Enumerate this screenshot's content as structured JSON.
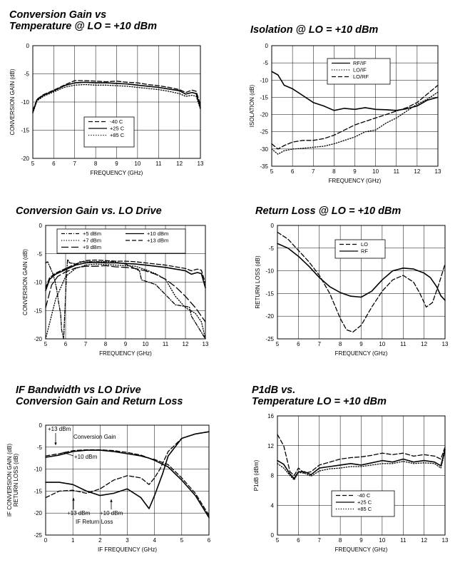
{
  "chart_data": [
    {
      "type": "line",
      "title": [
        "Conversion Gain vs",
        "Temperature @ LO = +10 dBm"
      ],
      "xlabel": "FREQUENCY (GHz)",
      "ylabel": [
        "CONVERSION GAIN (dB)"
      ],
      "xlim": [
        5,
        13
      ],
      "ylim": [
        -20,
        0
      ],
      "xticks": [
        5,
        6,
        7,
        8,
        9,
        10,
        11,
        12,
        13
      ],
      "yticks": [
        0,
        -5,
        -10,
        -15,
        -20
      ],
      "legend": {
        "position": "lower-center"
      },
      "series": [
        {
          "name": "-40 C",
          "style": "dash",
          "x": [
            5,
            5.2,
            5.5,
            6,
            6.5,
            7,
            7.5,
            8,
            8.5,
            9,
            9.5,
            10,
            10.5,
            11,
            11.5,
            12,
            12.3,
            12.6,
            12.8,
            13
          ],
          "y": [
            -11.5,
            -9.5,
            -8.7,
            -7.9,
            -7.0,
            -6.2,
            -6.2,
            -6.3,
            -6.4,
            -6.3,
            -6.5,
            -6.6,
            -6.9,
            -7.1,
            -7.4,
            -7.8,
            -8.3,
            -7.9,
            -8.1,
            -10.5
          ]
        },
        {
          "name": "+25 C",
          "style": "solid",
          "x": [
            5,
            5.2,
            5.5,
            6,
            6.5,
            7,
            7.5,
            8,
            8.5,
            9,
            9.5,
            10,
            10.5,
            11,
            11.5,
            12,
            12.3,
            12.6,
            12.8,
            13
          ],
          "y": [
            -11.8,
            -9.6,
            -8.8,
            -8.0,
            -7.1,
            -6.6,
            -6.5,
            -6.6,
            -6.6,
            -6.7,
            -6.8,
            -7.0,
            -7.2,
            -7.4,
            -7.7,
            -8.0,
            -8.6,
            -8.3,
            -8.5,
            -11.0
          ]
        },
        {
          "name": "+85 C",
          "style": "dot",
          "x": [
            5,
            5.2,
            5.5,
            6,
            6.5,
            7,
            7.5,
            8,
            8.5,
            9,
            9.5,
            10,
            10.5,
            11,
            11.5,
            12,
            12.3,
            12.6,
            12.8,
            13
          ],
          "y": [
            -12.0,
            -9.8,
            -9.0,
            -8.2,
            -7.4,
            -7.0,
            -6.9,
            -7.0,
            -7.0,
            -7.1,
            -7.2,
            -7.4,
            -7.6,
            -7.8,
            -8.1,
            -8.5,
            -9.0,
            -8.8,
            -9.0,
            -11.3
          ]
        }
      ]
    },
    {
      "type": "line",
      "title": [
        "Isolation @ LO = +10 dBm"
      ],
      "xlabel": "FREQUENCY (GHz)",
      "ylabel": [
        "ISOLATION (dB)"
      ],
      "xlim": [
        5,
        13
      ],
      "ylim": [
        -35,
        0
      ],
      "xticks": [
        5,
        6,
        7,
        8,
        9,
        10,
        11,
        12,
        13
      ],
      "yticks": [
        0,
        -5,
        -10,
        -15,
        -20,
        -25,
        -30,
        -35
      ],
      "legend": {
        "position": "top-center"
      },
      "series": [
        {
          "name": "RF/IF",
          "style": "solid",
          "x": [
            5,
            5.3,
            5.6,
            6,
            6.5,
            7,
            7.5,
            8,
            8.5,
            9,
            9.5,
            10,
            10.5,
            11,
            11.5,
            12,
            12.5,
            13
          ],
          "y": [
            -7.5,
            -8.5,
            -11.5,
            -12.5,
            -14.5,
            -16.5,
            -17.5,
            -18.8,
            -18.2,
            -18.5,
            -18.0,
            -18.5,
            -18.6,
            -18.8,
            -18.3,
            -17.5,
            -15.8,
            -15.0
          ]
        },
        {
          "name": "LO/IF",
          "style": "dot",
          "x": [
            5,
            5.3,
            5.6,
            6,
            6.5,
            7,
            7.5,
            8,
            8.5,
            9,
            9.5,
            10,
            10.5,
            11,
            11.5,
            12,
            12.5,
            13
          ],
          "y": [
            -30.0,
            -31.5,
            -30.5,
            -30.0,
            -29.8,
            -29.5,
            -29.2,
            -28.5,
            -27.5,
            -26.5,
            -25.0,
            -24.5,
            -22.5,
            -21.0,
            -19.0,
            -17.0,
            -15.5,
            -13.5
          ]
        },
        {
          "name": "LO/RF",
          "style": "dash",
          "x": [
            5,
            5.3,
            5.6,
            6,
            6.5,
            7,
            7.5,
            8,
            8.5,
            9,
            9.5,
            10,
            10.5,
            11,
            11.5,
            12,
            12.5,
            13
          ],
          "y": [
            -28.5,
            -30.0,
            -29.0,
            -28.0,
            -27.5,
            -27.5,
            -27.0,
            -26.0,
            -24.5,
            -23.0,
            -22.0,
            -21.0,
            -20.0,
            -19.0,
            -18.0,
            -16.5,
            -14.0,
            -11.5
          ]
        }
      ]
    },
    {
      "type": "line",
      "title": [
        "Conversion Gain vs. LO Drive"
      ],
      "xlabel": "FREQUENCY (GHz)",
      "ylabel": [
        "CONVERSION GAIN (dB)"
      ],
      "xlim": [
        5,
        13
      ],
      "ylim": [
        -20,
        0
      ],
      "xticks": [
        5,
        6,
        7,
        8,
        9,
        10,
        11,
        12,
        13
      ],
      "yticks": [
        0,
        -5,
        -10,
        -15,
        -20
      ],
      "legend": {
        "position": "top",
        "columns": 2
      },
      "series": [
        {
          "name": "+5 dBm",
          "style": "dashdot",
          "x": [
            5.0,
            5.1,
            5.25,
            5.3,
            5.35,
            5.45,
            5.5,
            5.55,
            5.6,
            5.65,
            5.75,
            5.8,
            5.9,
            6.05,
            6.1,
            6.2,
            6.6,
            6.7,
            6.85,
            8.4,
            9.0,
            9.7,
            9.8,
            10.5,
            11.5,
            12.2,
            12.3,
            13.0
          ],
          "y": [
            -6.6,
            -6.4,
            -7.6,
            -8.0,
            -8.4,
            -9.6,
            -10.4,
            -11.2,
            -12.4,
            -13.6,
            -15.6,
            -18.4,
            -20.0,
            -8.4,
            -6.0,
            -6.6,
            -6.8,
            -6.4,
            -6.4,
            -6.4,
            -6.8,
            -8.0,
            -9.6,
            -10.4,
            -14.0,
            -14.4,
            -16.0,
            -20.0
          ]
        },
        {
          "name": "+7 dBm",
          "style": "dot",
          "x": [
            5,
            5.5,
            6,
            6.5,
            7,
            7.5,
            8,
            8.5,
            9,
            9.5,
            10,
            10.5,
            11,
            11.5,
            12,
            12.5,
            12.8,
            13
          ],
          "y": [
            -20.0,
            -13.0,
            -9.0,
            -7.6,
            -7.0,
            -6.8,
            -6.9,
            -7.0,
            -7.1,
            -7.2,
            -7.8,
            -8.5,
            -9.5,
            -12.5,
            -14.5,
            -15.5,
            -17.0,
            -20.0
          ]
        },
        {
          "name": "+9 dBm",
          "style": "longdash",
          "x": [
            5,
            5.3,
            5.6,
            6,
            6.5,
            7,
            7.5,
            8,
            8.5,
            9,
            9.5,
            10,
            10.5,
            11,
            11.5,
            12,
            12.5,
            13
          ],
          "y": [
            -14.5,
            -10.5,
            -9.0,
            -8.2,
            -7.5,
            -7.2,
            -7.2,
            -7.1,
            -7.3,
            -7.4,
            -7.6,
            -8.0,
            -8.6,
            -9.5,
            -10.8,
            -12.5,
            -14.5,
            -17.0
          ]
        },
        {
          "name": "+10 dBm",
          "style": "solid",
          "x": [
            5,
            5.2,
            5.5,
            6,
            6.5,
            7,
            7.5,
            8,
            8.5,
            9,
            9.5,
            10,
            10.5,
            11,
            11.5,
            12,
            12.3,
            12.6,
            12.8,
            13
          ],
          "y": [
            -11.5,
            -9.5,
            -8.6,
            -7.8,
            -7.0,
            -6.6,
            -6.5,
            -6.6,
            -6.6,
            -6.7,
            -6.8,
            -7.0,
            -7.2,
            -7.4,
            -7.7,
            -8.0,
            -8.6,
            -8.3,
            -8.5,
            -11.0
          ]
        },
        {
          "name": "+13 dBm",
          "style": "dash",
          "x": [
            5,
            5.2,
            5.5,
            6,
            6.5,
            7,
            7.5,
            8,
            8.5,
            9,
            9.5,
            10,
            10.5,
            11,
            11.5,
            12,
            12.3,
            12.6,
            12.8,
            13
          ],
          "y": [
            -11.0,
            -9.2,
            -8.4,
            -7.6,
            -6.8,
            -6.2,
            -6.1,
            -6.2,
            -6.3,
            -6.3,
            -6.4,
            -6.6,
            -6.8,
            -7.0,
            -7.3,
            -7.6,
            -8.0,
            -7.7,
            -7.9,
            -10.2
          ]
        }
      ]
    },
    {
      "type": "line",
      "title": [
        "Return Loss @ LO = +10 dBm"
      ],
      "xlabel": "FREQUENCY (GHz)",
      "ylabel": [
        "RETURN LOSS (dB)"
      ],
      "xlim": [
        5,
        13
      ],
      "ylim": [
        -25,
        0
      ],
      "xticks": [
        5,
        6,
        7,
        8,
        9,
        10,
        11,
        12,
        13
      ],
      "yticks": [
        0,
        -5,
        -10,
        -15,
        -20,
        -25
      ],
      "legend": {
        "position": "top-center"
      },
      "series": [
        {
          "name": "LO",
          "style": "dash",
          "x": [
            5,
            5.5,
            6,
            6.5,
            7,
            7.5,
            8,
            8.3,
            8.6,
            9,
            9.5,
            10,
            10.5,
            11,
            11.5,
            11.8,
            12.1,
            12.4,
            12.7,
            13
          ],
          "y": [
            -1.5,
            -3.0,
            -5.5,
            -8.0,
            -11.0,
            -15.0,
            -20.5,
            -23.0,
            -23.5,
            -22.0,
            -18.0,
            -14.5,
            -12.0,
            -11.0,
            -12.5,
            -15.0,
            -18.0,
            -17.0,
            -13.0,
            -8.5
          ]
        },
        {
          "name": "RF",
          "style": "solid",
          "x": [
            5,
            5.5,
            6,
            6.5,
            7,
            7.5,
            8,
            8.5,
            9,
            9.5,
            10,
            10.5,
            11,
            11.5,
            12,
            12.3,
            12.6,
            12.8,
            13
          ],
          "y": [
            -4.0,
            -5.0,
            -6.8,
            -9.0,
            -11.5,
            -13.5,
            -14.8,
            -15.6,
            -15.8,
            -14.5,
            -12.0,
            -10.0,
            -9.4,
            -9.6,
            -10.5,
            -11.5,
            -13.5,
            -15.5,
            -16.5
          ]
        }
      ]
    },
    {
      "type": "line",
      "title": [
        "IF Bandwidth vs LO Drive",
        "Conversion Gain and Return Loss"
      ],
      "xlabel": "IF FREQUENCY (GHz)",
      "ylabel": [
        "IF CONVERSION GAIN (dB)",
        "RETURN LOSS (dB)"
      ],
      "xlim": [
        0,
        6
      ],
      "ylim": [
        -25,
        0
      ],
      "xticks": [
        0,
        1,
        2,
        3,
        4,
        5,
        6
      ],
      "yticks": [
        0,
        -5,
        -10,
        -15,
        -20,
        -25
      ],
      "annotations": {
        "cg_13": "+13 dBm",
        "cg_label": "Conversion Gain",
        "cg_10": "+10 dBm",
        "rl_13": "+13 dBm",
        "rl_10": "+10 dBm",
        "rl_label": "IF Return Loss"
      },
      "series": [
        {
          "name": "Conversion Gain +13 dBm",
          "style": "dash",
          "x": [
            0,
            0.5,
            1,
            1.5,
            2,
            2.5,
            3,
            3.5,
            3.8,
            4,
            4.5,
            5,
            5.5,
            6
          ],
          "y": [
            -7.0,
            -6.5,
            -5.8,
            -5.6,
            -5.6,
            -5.8,
            -6.2,
            -6.8,
            -7.5,
            -7.8,
            -9.0,
            -12.0,
            -15.5,
            -20.5
          ]
        },
        {
          "name": "Conversion Gain +10 dBm",
          "style": "solid",
          "x": [
            0,
            0.5,
            1,
            1.5,
            2,
            2.5,
            3,
            3.5,
            3.8,
            4,
            4.5,
            5,
            5.5,
            6
          ],
          "y": [
            -7.3,
            -6.8,
            -6.0,
            -5.7,
            -5.7,
            -6.0,
            -6.5,
            -7.0,
            -7.5,
            -8.0,
            -9.5,
            -12.5,
            -16.0,
            -21.0
          ]
        },
        {
          "name": "IF Return Loss +13 dBm",
          "style": "dash",
          "x": [
            0,
            0.5,
            1,
            1.5,
            2,
            2.5,
            3,
            3.5,
            3.8,
            4,
            4.2,
            4.5,
            5,
            5.5,
            6
          ],
          "y": [
            -16.5,
            -15.0,
            -14.8,
            -15.5,
            -14.5,
            -12.5,
            -11.5,
            -12.0,
            -13.5,
            -12.0,
            -10.0,
            -6.0,
            -3.0,
            -2.0,
            -1.5
          ]
        },
        {
          "name": "IF Return Loss +10 dBm",
          "style": "solid",
          "x": [
            0,
            0.5,
            1,
            1.5,
            2,
            2.5,
            3,
            3.5,
            3.8,
            4,
            4.3,
            4.5,
            5,
            5.5,
            6
          ],
          "y": [
            -13.0,
            -13.0,
            -13.5,
            -15.0,
            -16.0,
            -15.5,
            -14.5,
            -16.5,
            -19.0,
            -16.0,
            -11.0,
            -7.0,
            -3.0,
            -2.0,
            -1.5
          ]
        }
      ]
    },
    {
      "type": "line",
      "title": [
        "P1dB vs.",
        "Temperature LO = +10 dBm"
      ],
      "xlabel": "FREQUENCY (GHz)",
      "ylabel": [
        "P1dB (dBm)"
      ],
      "xlim": [
        5,
        13
      ],
      "ylim": [
        0,
        16
      ],
      "xticks": [
        5,
        6,
        7,
        8,
        9,
        10,
        11,
        12,
        13
      ],
      "yticks": [
        0,
        4,
        8,
        12,
        16
      ],
      "legend": {
        "position": "lower-center"
      },
      "series": [
        {
          "name": "-40 C",
          "style": "dash",
          "x": [
            5,
            5.3,
            5.6,
            5.8,
            6,
            6.3,
            6.6,
            7,
            7.5,
            8,
            8.5,
            9,
            9.5,
            10,
            10.5,
            11,
            11.5,
            12,
            12.5,
            12.8,
            13
          ],
          "y": [
            13.5,
            12.0,
            8.5,
            8.0,
            9.0,
            8.3,
            8.5,
            9.4,
            9.8,
            10.2,
            10.4,
            10.5,
            10.7,
            11.0,
            10.8,
            11.0,
            10.6,
            10.8,
            10.6,
            10.2,
            11.8
          ]
        },
        {
          "name": "+25 C",
          "style": "solid",
          "x": [
            5,
            5.3,
            5.6,
            5.8,
            6,
            6.3,
            6.6,
            7,
            7.5,
            8,
            8.5,
            9,
            9.5,
            10,
            10.5,
            11,
            11.5,
            12,
            12.5,
            12.8,
            13
          ],
          "y": [
            10.0,
            9.5,
            8.2,
            7.6,
            8.5,
            8.5,
            8.1,
            9.0,
            9.2,
            9.4,
            9.6,
            9.4,
            9.7,
            10.0,
            9.8,
            10.2,
            9.8,
            10.0,
            9.8,
            9.3,
            11.5
          ]
        },
        {
          "name": "+85 C",
          "style": "dot",
          "x": [
            5,
            5.3,
            5.6,
            5.8,
            6,
            6.3,
            6.6,
            7,
            7.5,
            8,
            8.5,
            9,
            9.5,
            10,
            10.5,
            11,
            11.5,
            12,
            12.5,
            12.8,
            13
          ],
          "y": [
            9.6,
            9.0,
            8.0,
            7.4,
            8.4,
            8.3,
            7.9,
            8.6,
            8.9,
            9.0,
            9.2,
            9.2,
            9.4,
            9.6,
            9.6,
            9.9,
            9.6,
            9.7,
            9.6,
            9.0,
            11.2
          ]
        }
      ]
    }
  ]
}
